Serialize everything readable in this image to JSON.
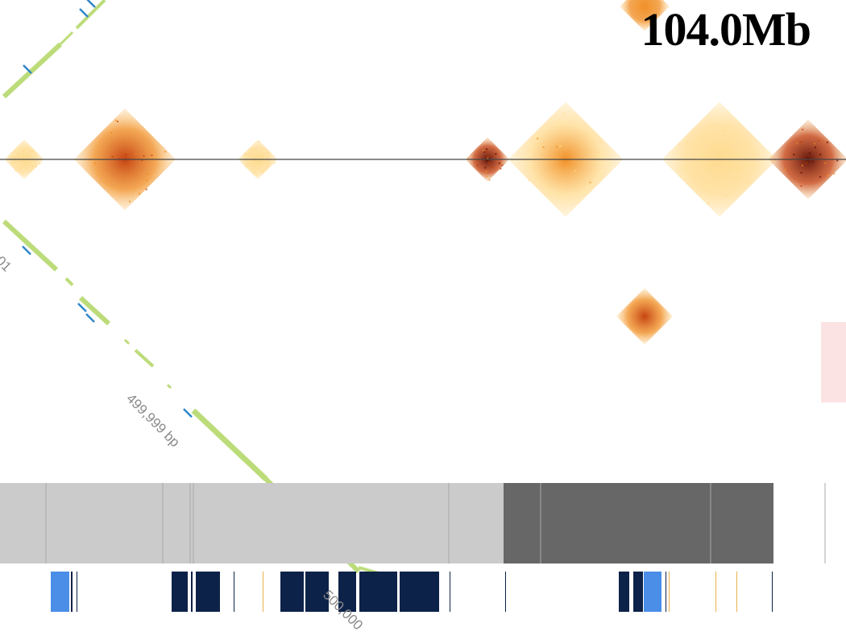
{
  "header": {
    "position_label": "104.0Mb"
  },
  "axis_labels": {
    "diagonal_mid": "499,999 bp",
    "diagonal_bottom": "500,000",
    "diagonal_top_fragment": "01"
  },
  "colors": {
    "heat_light": "#ffd98a",
    "heat_mid": "#f08a1c",
    "heat_strong": "#c23a06",
    "heat_dark": "#5a0a00",
    "axis_line": "#444444",
    "alignment_green": "#bcdc7a",
    "alignment_tick_blue": "#2f86c8",
    "track_light": "#cbcbcb",
    "track_dark": "#676767",
    "gene_dark": "#0d2249",
    "gene_light": "#4a8ee8",
    "gene_orange": "#e9b04a",
    "side_marker": "#fbe3e3"
  },
  "heatmap": {
    "domains": [
      {
        "center": 30,
        "size": 45,
        "intensity": 0.25
      },
      {
        "center": 155,
        "size": 115,
        "intensity": 0.7
      },
      {
        "center": 320,
        "size": 45,
        "intensity": 0.2
      },
      {
        "center": 605,
        "size": 50,
        "intensity": 1.0
      },
      {
        "center": 702,
        "size": 130,
        "intensity": 0.4
      },
      {
        "center": 893,
        "size": 130,
        "intensity": 0.35
      },
      {
        "center": 1003,
        "size": 90,
        "intensity": 1.0
      }
    ],
    "offdiagonal_blocks": [
      {
        "center_x": 800,
        "center_y": 393,
        "size": 50,
        "intensity": 0.8
      },
      {
        "center_x": 800,
        "center_y": 8,
        "size": 44,
        "intensity": 0.6
      }
    ]
  },
  "tracks": {
    "band_segments": [
      {
        "start": 0,
        "end": 625,
        "tone": "light"
      },
      {
        "start": 625,
        "end": 960,
        "tone": "dark"
      }
    ],
    "band_separators": [
      57,
      202,
      236,
      240,
      557,
      671,
      882,
      1024
    ],
    "genes": [
      {
        "start": 63,
        "end": 86,
        "tone": "light"
      },
      {
        "start": 88,
        "end": 90,
        "tone": "dark"
      },
      {
        "start": 95,
        "end": 96,
        "tone": "dark"
      },
      {
        "start": 213,
        "end": 233,
        "tone": "dark"
      },
      {
        "start": 237,
        "end": 239,
        "tone": "dark"
      },
      {
        "start": 243,
        "end": 273,
        "tone": "dark"
      },
      {
        "start": 290,
        "end": 291,
        "tone": "dark"
      },
      {
        "start": 326,
        "end": 327,
        "tone": "orange"
      },
      {
        "start": 348,
        "end": 377,
        "tone": "dark"
      },
      {
        "start": 379,
        "end": 408,
        "tone": "dark"
      },
      {
        "start": 420,
        "end": 442,
        "tone": "dark"
      },
      {
        "start": 446,
        "end": 493,
        "tone": "dark"
      },
      {
        "start": 496,
        "end": 545,
        "tone": "dark"
      },
      {
        "start": 558,
        "end": 559,
        "tone": "dark"
      },
      {
        "start": 627,
        "end": 628,
        "tone": "dark"
      },
      {
        "start": 768,
        "end": 781,
        "tone": "dark"
      },
      {
        "start": 786,
        "end": 798,
        "tone": "dark"
      },
      {
        "start": 799,
        "end": 821,
        "tone": "light"
      },
      {
        "start": 826,
        "end": 827,
        "tone": "dark"
      },
      {
        "start": 830,
        "end": 831,
        "tone": "orange"
      },
      {
        "start": 888,
        "end": 889,
        "tone": "orange"
      },
      {
        "start": 914,
        "end": 915,
        "tone": "orange"
      },
      {
        "start": 958,
        "end": 959,
        "tone": "dark"
      }
    ]
  }
}
